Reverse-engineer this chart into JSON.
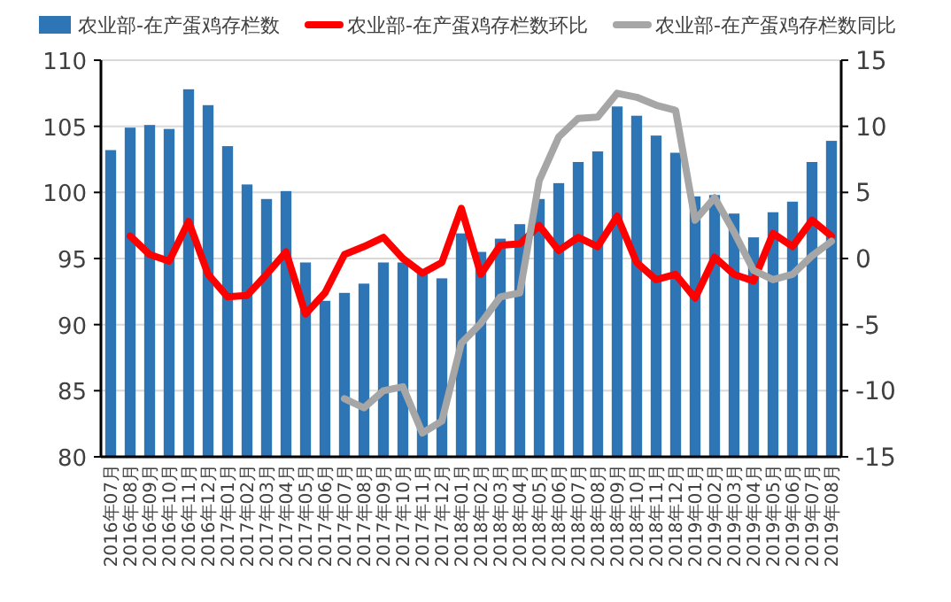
{
  "chart_data": {
    "type": "bar",
    "categories": [
      "2016年07月",
      "2016年08月",
      "2016年09月",
      "2016年10月",
      "2016年11月",
      "2016年12月",
      "2017年01月",
      "2017年02月",
      "2017年03月",
      "2017年04月",
      "2017年05月",
      "2017年06月",
      "2017年07月",
      "2017年08月",
      "2017年09月",
      "2017年10月",
      "2017年11月",
      "2017年12月",
      "2018年01月",
      "2018年02月",
      "2018年03月",
      "2018年04月",
      "2018年05月",
      "2018年06月",
      "2018年07月",
      "2018年08月",
      "2018年09月",
      "2018年10月",
      "2018年11月",
      "2018年12月",
      "2019年01月",
      "2019年02月",
      "2019年03月",
      "2019年04月",
      "2019年05月",
      "2019年06月",
      "2019年07月",
      "2019年08月"
    ],
    "series": [
      {
        "name": "农业部-在产蛋鸡存栏数",
        "color": "#2e75b6",
        "values": [
          103.2,
          104.9,
          105.1,
          104.8,
          107.8,
          106.6,
          103.5,
          100.6,
          99.5,
          100.1,
          94.7,
          91.8,
          92.4,
          93.1,
          94.7,
          94.7,
          94.1,
          93.5,
          96.9,
          95.5,
          96.5,
          97.6,
          99.5,
          100.7,
          102.3,
          103.1,
          106.5,
          105.8,
          104.3,
          103.0,
          99.7,
          99.8,
          98.4,
          96.6,
          98.5,
          99.3,
          102.3,
          103.9
        ]
      },
      {
        "name": "农业部-在产蛋鸡存栏数环比",
        "type": "line",
        "axis": "y2",
        "color": "#ff0000",
        "values": [
          null,
          1.7,
          0.3,
          -0.2,
          2.8,
          -1.2,
          -2.9,
          -2.8,
          -1.2,
          0.5,
          -4.2,
          -2.6,
          0.3,
          0.9,
          1.6,
          0,
          -1.1,
          -0.3,
          3.8,
          -1.2,
          1.0,
          1.1,
          2.5,
          0.6,
          1.6,
          0.9,
          3.2,
          -0.3,
          -1.6,
          -1.2,
          -3.0,
          0.1,
          -1.2,
          -1.7,
          1.9,
          0.9,
          2.9,
          1.7
        ]
      },
      {
        "name": "农业部-在产蛋鸡存栏数同比",
        "type": "line",
        "axis": "y2",
        "color": "#a6a6a6",
        "values": [
          null,
          null,
          null,
          null,
          null,
          null,
          null,
          null,
          null,
          null,
          null,
          null,
          -10.6,
          -11.3,
          -10.0,
          -9.7,
          -13.2,
          -12.3,
          -6.4,
          -4.9,
          -2.9,
          -2.6,
          5.9,
          9.2,
          10.6,
          10.7,
          12.5,
          12.2,
          11.6,
          11.2,
          2.9,
          4.6,
          2.0,
          -0.9,
          -1.6,
          -1.2,
          0.2,
          1.3
        ]
      }
    ],
    "ylim": [
      80,
      110
    ],
    "yticks": [
      80,
      85,
      90,
      95,
      100,
      105,
      110
    ],
    "y2lim": [
      -15,
      15
    ],
    "y2ticks": [
      -15,
      -10,
      -5,
      0,
      5,
      10,
      15
    ],
    "grid": "y",
    "legend": "top",
    "marker": "none",
    "line_style": "solid"
  }
}
